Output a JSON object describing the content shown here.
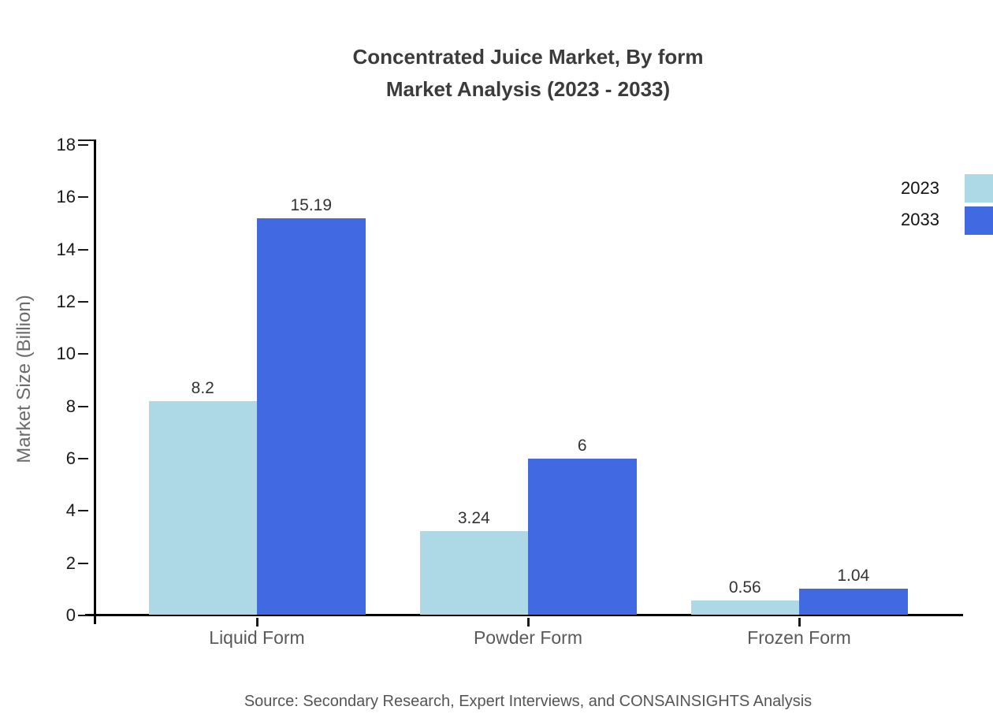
{
  "title": {
    "line1": "Concentrated Juice Market, By form",
    "line2": "Market Analysis (2023 - 2033)"
  },
  "chart_data": {
    "type": "bar",
    "categories": [
      "Liquid Form",
      "Powder Form",
      "Frozen Form"
    ],
    "series": [
      {
        "name": "2023",
        "color": "#ADD8E6",
        "values": [
          8.2,
          3.24,
          0.56
        ]
      },
      {
        "name": "2033",
        "color": "#4169E1",
        "values": [
          15.19,
          6,
          1.04
        ]
      }
    ],
    "title": "Concentrated Juice Market, By form Market Analysis (2023 - 2033)",
    "xlabel": "",
    "ylabel": "Market Size (Billion)",
    "ylim": [
      0,
      18
    ],
    "ytick_step": 2,
    "grid": false,
    "legend_position": "top-right",
    "value_labels": true
  },
  "source": "Source: Secondary Research, Expert Interviews, and CONSAINSIGHTS Analysis",
  "colors": {
    "series_2023": "#ADD8E6",
    "series_2033": "#4169E1",
    "axis": "#000000",
    "tick_label": "#1a1a1a",
    "category_label": "#595959",
    "value_label": "#333333",
    "title": "#3b3b3b",
    "ylabel": "#6b6b6b",
    "source": "#555555",
    "background": "#ffffff"
  }
}
